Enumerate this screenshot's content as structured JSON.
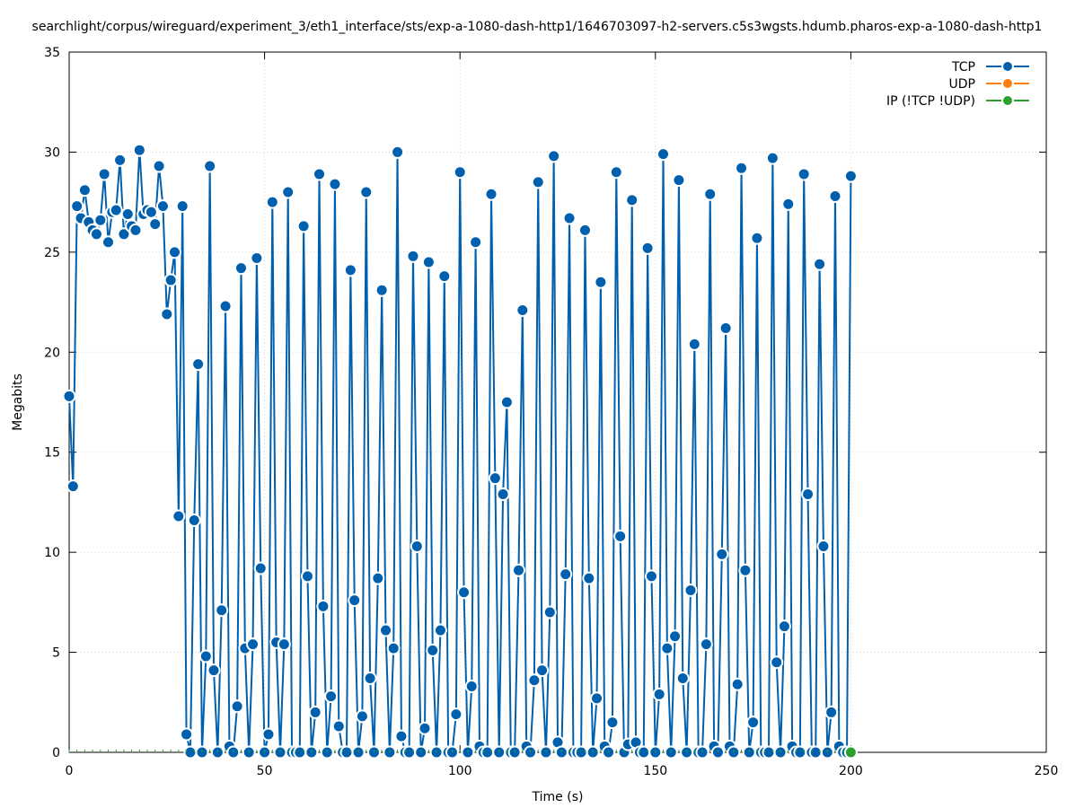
{
  "chart_data": {
    "type": "line",
    "title": "searchlight/corpus/wireguard/experiment_3/eth1_interface/sts/exp-a-1080-dash-http1/1646703097-h2-servers.c5s3wgsts.hdumb.pharos-exp-a-1080-dash-http1",
    "xlabel": "Time (s)",
    "ylabel": "Megabits",
    "xlim": [
      0,
      250
    ],
    "ylim": [
      0,
      35
    ],
    "xticks": [
      "0",
      "50",
      "100",
      "150",
      "200",
      "250"
    ],
    "yticks": [
      "0",
      "5",
      "10",
      "15",
      "20",
      "25",
      "30",
      "35"
    ],
    "grid": true,
    "legend_position": "top-right",
    "series": [
      {
        "name": "TCP",
        "color": "#0060ad",
        "points": [
          [
            0,
            17.8
          ],
          [
            1,
            13.3
          ],
          [
            2,
            27.3
          ],
          [
            3,
            26.7
          ],
          [
            4,
            28.1
          ],
          [
            5,
            26.5
          ],
          [
            6,
            26.1
          ],
          [
            7,
            25.9
          ],
          [
            8,
            26.6
          ],
          [
            9,
            28.9
          ],
          [
            10,
            25.5
          ],
          [
            11,
            27.0
          ],
          [
            12,
            27.1
          ],
          [
            13,
            29.6
          ],
          [
            14,
            25.9
          ],
          [
            15,
            26.9
          ],
          [
            16,
            26.3
          ],
          [
            17,
            26.1
          ],
          [
            18,
            30.1
          ],
          [
            19,
            26.9
          ],
          [
            20,
            27.1
          ],
          [
            21,
            27.0
          ],
          [
            22,
            26.4
          ],
          [
            23,
            29.3
          ],
          [
            24,
            27.3
          ],
          [
            25,
            21.9
          ],
          [
            26,
            23.6
          ],
          [
            27,
            25.0
          ],
          [
            28,
            11.8
          ],
          [
            29,
            27.3
          ],
          [
            30,
            0.9
          ],
          [
            31,
            0.0
          ],
          [
            32,
            11.6
          ],
          [
            33,
            19.4
          ],
          [
            34,
            0.0
          ],
          [
            35,
            4.8
          ],
          [
            36,
            29.3
          ],
          [
            37,
            4.1
          ],
          [
            38,
            0.0
          ],
          [
            39,
            7.1
          ],
          [
            40,
            22.3
          ],
          [
            41,
            0.3
          ],
          [
            42,
            0.0
          ],
          [
            43,
            2.3
          ],
          [
            44,
            24.2
          ],
          [
            45,
            5.2
          ],
          [
            46,
            0.0
          ],
          [
            47,
            5.4
          ],
          [
            48,
            24.7
          ],
          [
            49,
            9.2
          ],
          [
            50,
            0.0
          ],
          [
            51,
            0.9
          ],
          [
            52,
            27.5
          ],
          [
            53,
            5.5
          ],
          [
            54,
            0.0
          ],
          [
            55,
            5.4
          ],
          [
            56,
            28.0
          ],
          [
            57,
            0.0
          ],
          [
            58,
            0.0
          ],
          [
            59,
            0.0
          ],
          [
            60,
            26.3
          ],
          [
            61,
            8.8
          ],
          [
            62,
            0.0
          ],
          [
            63,
            2.0
          ],
          [
            64,
            28.9
          ],
          [
            65,
            7.3
          ],
          [
            66,
            0.0
          ],
          [
            67,
            2.8
          ],
          [
            68,
            28.4
          ],
          [
            69,
            1.3
          ],
          [
            70,
            0.0
          ],
          [
            71,
            0.0
          ],
          [
            72,
            24.1
          ],
          [
            73,
            7.6
          ],
          [
            74,
            0.0
          ],
          [
            75,
            1.8
          ],
          [
            76,
            28.0
          ],
          [
            77,
            3.7
          ],
          [
            78,
            0.0
          ],
          [
            79,
            8.7
          ],
          [
            80,
            23.1
          ],
          [
            81,
            6.1
          ],
          [
            82,
            0.0
          ],
          [
            83,
            5.2
          ],
          [
            84,
            30.0
          ],
          [
            85,
            0.8
          ],
          [
            86,
            0.0
          ],
          [
            87,
            0.0
          ],
          [
            88,
            24.8
          ],
          [
            89,
            10.3
          ],
          [
            90,
            0.0
          ],
          [
            91,
            1.2
          ],
          [
            92,
            24.5
          ],
          [
            93,
            5.1
          ],
          [
            94,
            0.0
          ],
          [
            95,
            6.1
          ],
          [
            96,
            23.8
          ],
          [
            97,
            0.0
          ],
          [
            98,
            0.0
          ],
          [
            99,
            1.9
          ],
          [
            100,
            29.0
          ],
          [
            101,
            8.0
          ],
          [
            102,
            0.0
          ],
          [
            103,
            3.3
          ],
          [
            104,
            25.5
          ],
          [
            105,
            0.3
          ],
          [
            106,
            0.0
          ],
          [
            107,
            0.0
          ],
          [
            108,
            27.9
          ],
          [
            109,
            13.7
          ],
          [
            110,
            0.0
          ],
          [
            111,
            12.9
          ],
          [
            112,
            17.5
          ],
          [
            113,
            0.0
          ],
          [
            114,
            0.0
          ],
          [
            115,
            9.1
          ],
          [
            116,
            22.1
          ],
          [
            117,
            0.3
          ],
          [
            118,
            0.0
          ],
          [
            119,
            3.6
          ],
          [
            120,
            28.5
          ],
          [
            121,
            4.1
          ],
          [
            122,
            0.0
          ],
          [
            123,
            7.0
          ],
          [
            124,
            29.8
          ],
          [
            125,
            0.5
          ],
          [
            126,
            0.0
          ],
          [
            127,
            8.9
          ],
          [
            128,
            26.7
          ],
          [
            129,
            0.0
          ],
          [
            130,
            0.0
          ],
          [
            131,
            0.0
          ],
          [
            132,
            26.1
          ],
          [
            133,
            8.7
          ],
          [
            134,
            0.0
          ],
          [
            135,
            2.7
          ],
          [
            136,
            23.5
          ],
          [
            137,
            0.3
          ],
          [
            138,
            0.0
          ],
          [
            139,
            1.5
          ],
          [
            140,
            29.0
          ],
          [
            141,
            10.8
          ],
          [
            142,
            0.0
          ],
          [
            143,
            0.4
          ],
          [
            144,
            27.6
          ],
          [
            145,
            0.5
          ],
          [
            146,
            0.0
          ],
          [
            147,
            0.0
          ],
          [
            148,
            25.2
          ],
          [
            149,
            8.8
          ],
          [
            150,
            0.0
          ],
          [
            151,
            2.9
          ],
          [
            152,
            29.9
          ],
          [
            153,
            5.2
          ],
          [
            154,
            0.0
          ],
          [
            155,
            5.8
          ],
          [
            156,
            28.6
          ],
          [
            157,
            3.7
          ],
          [
            158,
            0.0
          ],
          [
            159,
            8.1
          ],
          [
            160,
            20.4
          ],
          [
            161,
            0.0
          ],
          [
            162,
            0.0
          ],
          [
            163,
            5.4
          ],
          [
            164,
            27.9
          ],
          [
            165,
            0.3
          ],
          [
            166,
            0.0
          ],
          [
            167,
            9.9
          ],
          [
            168,
            21.2
          ],
          [
            169,
            0.3
          ],
          [
            170,
            0.0
          ],
          [
            171,
            3.4
          ],
          [
            172,
            29.2
          ],
          [
            173,
            9.1
          ],
          [
            174,
            0.0
          ],
          [
            175,
            1.5
          ],
          [
            176,
            25.7
          ],
          [
            177,
            0.0
          ],
          [
            178,
            0.0
          ],
          [
            179,
            0.0
          ],
          [
            180,
            29.7
          ],
          [
            181,
            4.5
          ],
          [
            182,
            0.0
          ],
          [
            183,
            6.3
          ],
          [
            184,
            27.4
          ],
          [
            185,
            0.3
          ],
          [
            186,
            0.0
          ],
          [
            187,
            0.0
          ],
          [
            188,
            28.9
          ],
          [
            189,
            12.9
          ],
          [
            190,
            0.0
          ],
          [
            191,
            0.0
          ],
          [
            192,
            24.4
          ],
          [
            193,
            10.3
          ],
          [
            194,
            0.0
          ],
          [
            195,
            2.0
          ],
          [
            196,
            27.8
          ],
          [
            197,
            0.3
          ],
          [
            198,
            0.0
          ],
          [
            199,
            0.0
          ],
          [
            200,
            28.8
          ]
        ]
      },
      {
        "name": "UDP",
        "color": "#ff7f0e",
        "points": []
      },
      {
        "name": "IP (!TCP  !UDP)",
        "color": "#2ca02c",
        "points": [
          [
            200,
            0.0
          ]
        ]
      }
    ]
  }
}
